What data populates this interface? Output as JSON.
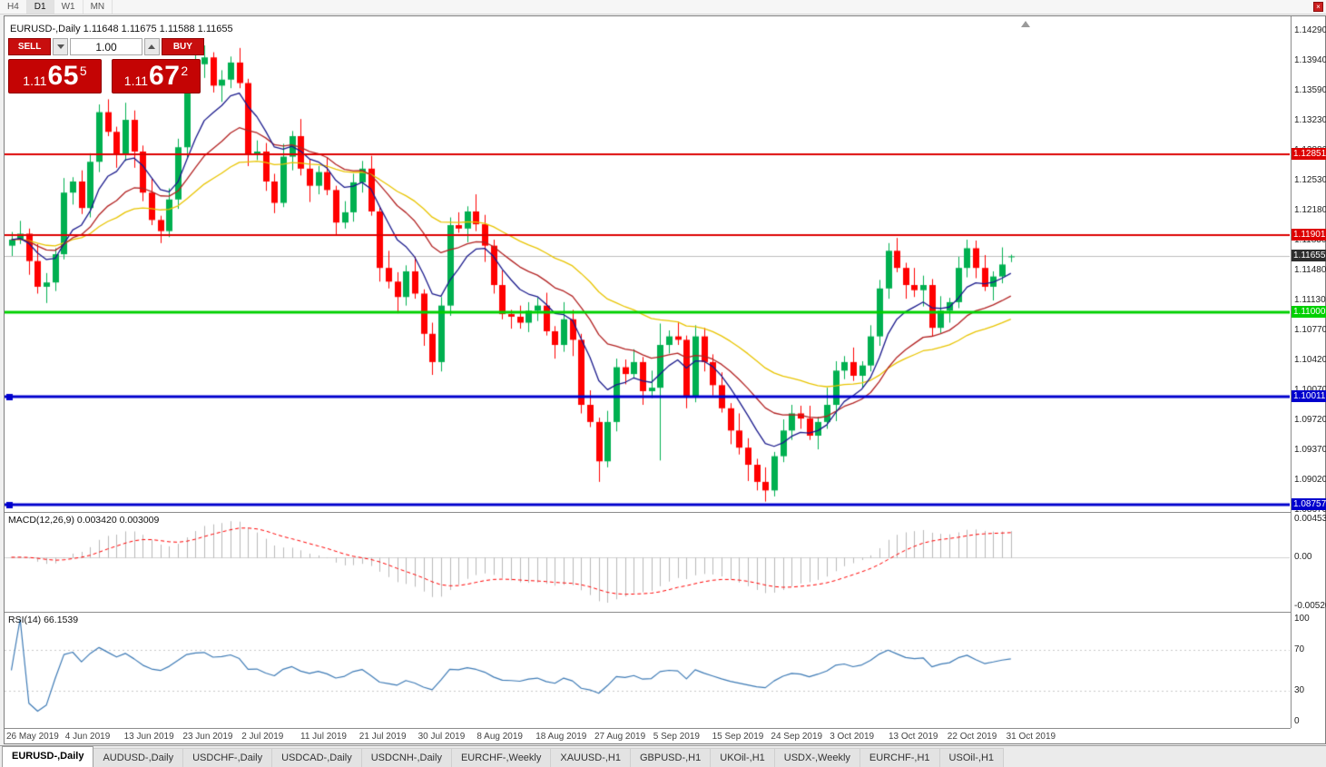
{
  "toolbar": {
    "timeframes": [
      "H4",
      "D1",
      "W1",
      "MN"
    ],
    "active_timeframe": "D1",
    "close_glyph": "×"
  },
  "chart_header": {
    "symbol_ohlc": "EURUSD-,Daily 1.11648 1.11675 1.11588 1.11655"
  },
  "trade_panel": {
    "sell_label": "SELL",
    "buy_label": "BUY",
    "volume": "1.00",
    "sell_price": {
      "prefix": "1.11",
      "main": "65",
      "sup": "5"
    },
    "buy_price": {
      "prefix": "1.11",
      "main": "67",
      "sup": "2"
    }
  },
  "main_chart": {
    "price_axis_labels": [
      "1.14290",
      "1.13940",
      "1.13590",
      "1.13230",
      "1.12880",
      "1.12530",
      "1.12180",
      "1.11830",
      "1.11480",
      "1.11130",
      "1.10770",
      "1.10420",
      "1.10070",
      "1.09720",
      "1.09370",
      "1.09020",
      "1.08670"
    ],
    "levels": [
      {
        "value": 1.12851,
        "label": "1.12851",
        "color": "#dd0000",
        "width": 2,
        "endpoints": false
      },
      {
        "value": 1.11901,
        "label": "1.11901",
        "color": "#dd0000",
        "width": 2,
        "endpoints": false
      },
      {
        "value": 1.11,
        "label": "1.11000",
        "color": "#00d000",
        "width": 3,
        "endpoints": false
      },
      {
        "value": 1.10011,
        "label": "1.10011",
        "color": "#0000cd",
        "width": 3,
        "endpoints": true
      },
      {
        "value": 1.08757,
        "label": "1.08757",
        "color": "#0000cd",
        "width": 3,
        "endpoints": true
      }
    ],
    "current_price": {
      "value": 1.11655,
      "label": "1.11655",
      "box_color": "#2e2e2e"
    }
  },
  "macd": {
    "header": "MACD(12,26,9) 0.003420 0.003009",
    "axis": [
      "0.004536",
      "0.00",
      "-0.005205"
    ]
  },
  "rsi": {
    "header": "RSI(14) 66.1539",
    "axis": [
      "100",
      "70",
      "30",
      "0"
    ],
    "levels": [
      70,
      30
    ]
  },
  "date_axis": [
    "26 May 2019",
    "4 Jun 2019",
    "13 Jun 2019",
    "23 Jun 2019",
    "2 Jul 2019",
    "11 Jul 2019",
    "21 Jul 2019",
    "30 Jul 2019",
    "8 Aug 2019",
    "18 Aug 2019",
    "27 Aug 2019",
    "5 Sep 2019",
    "15 Sep 2019",
    "24 Sep 2019",
    "3 Oct 2019",
    "13 Oct 2019",
    "22 Oct 2019",
    "31 Oct 2019"
  ],
  "tabs": [
    {
      "label": "EURUSD-,Daily",
      "active": true
    },
    {
      "label": "AUDUSD-,Daily",
      "active": false
    },
    {
      "label": "USDCHF-,Daily",
      "active": false
    },
    {
      "label": "USDCAD-,Daily",
      "active": false
    },
    {
      "label": "USDCNH-,Daily",
      "active": false
    },
    {
      "label": "EURCHF-,Weekly",
      "active": false
    },
    {
      "label": "XAUUSD-,H1",
      "active": false
    },
    {
      "label": "GBPUSD-,H1",
      "active": false
    },
    {
      "label": "UKOil-,H1",
      "active": false
    },
    {
      "label": "USDX-,Weekly",
      "active": false
    },
    {
      "label": "EURCHF-,H1",
      "active": false
    },
    {
      "label": "USOil-,H1",
      "active": false
    }
  ],
  "colors": {
    "up": "#00b050",
    "down": "#ff0000",
    "macd_hist": "#b8b8b8",
    "macd_signal": "#ff0000",
    "rsi_line": "#3d7ab5",
    "accent_red": "#c40404"
  },
  "chart_data": {
    "type": "candlestick",
    "title": "EURUSD-,Daily",
    "ohlc_display": {
      "open": "1.11648",
      "high": "1.11675",
      "low": "1.11588",
      "close": "1.11655"
    },
    "indicators": {
      "moving_averages": [
        {
          "period": 8,
          "color": "#1a1a8c"
        },
        {
          "period": 18,
          "color": "#b22222"
        },
        {
          "period": 35,
          "color": "#e8c400"
        }
      ],
      "macd": {
        "fast": 12,
        "slow": 26,
        "signal": 9,
        "value": 0.00342,
        "signal_value": 0.003009
      },
      "rsi": {
        "period": 14,
        "value": 66.1539
      }
    },
    "candles": [
      [
        1.1178,
        1.1194,
        1.1166,
        1.1185
      ],
      [
        1.1185,
        1.1207,
        1.118,
        1.1192
      ],
      [
        1.1192,
        1.1198,
        1.1144,
        1.116
      ],
      [
        1.116,
        1.118,
        1.1122,
        1.113
      ],
      [
        1.113,
        1.1146,
        1.1111,
        1.1135
      ],
      [
        1.1135,
        1.1175,
        1.1125,
        1.1168
      ],
      [
        1.1168,
        1.1257,
        1.1162,
        1.124
      ],
      [
        1.124,
        1.1258,
        1.1226,
        1.1253
      ],
      [
        1.1253,
        1.1266,
        1.1215,
        1.1222
      ],
      [
        1.1222,
        1.1286,
        1.1211,
        1.1276
      ],
      [
        1.1276,
        1.1343,
        1.1264,
        1.1334
      ],
      [
        1.1334,
        1.1349,
        1.1306,
        1.1311
      ],
      [
        1.1311,
        1.1317,
        1.1269,
        1.1285
      ],
      [
        1.1285,
        1.1345,
        1.1277,
        1.1325
      ],
      [
        1.1325,
        1.1336,
        1.1269,
        1.1288
      ],
      [
        1.1288,
        1.1295,
        1.123,
        1.124
      ],
      [
        1.124,
        1.1257,
        1.1202,
        1.1208
      ],
      [
        1.1208,
        1.1213,
        1.1181,
        1.1195
      ],
      [
        1.1195,
        1.1245,
        1.1188,
        1.1232
      ],
      [
        1.1232,
        1.1303,
        1.1221,
        1.1293
      ],
      [
        1.1293,
        1.1377,
        1.1281,
        1.1368
      ],
      [
        1.1368,
        1.1405,
        1.1363,
        1.139
      ],
      [
        1.139,
        1.1412,
        1.1374,
        1.1398
      ],
      [
        1.1398,
        1.1404,
        1.1357,
        1.1365
      ],
      [
        1.1365,
        1.1383,
        1.1346,
        1.1372
      ],
      [
        1.1372,
        1.1399,
        1.1362,
        1.1392
      ],
      [
        1.1392,
        1.1409,
        1.1362,
        1.1368
      ],
      [
        1.1368,
        1.1373,
        1.1271,
        1.1285
      ],
      [
        1.1285,
        1.1301,
        1.1278,
        1.1288
      ],
      [
        1.1288,
        1.1298,
        1.1242,
        1.1253
      ],
      [
        1.1253,
        1.1262,
        1.1216,
        1.1228
      ],
      [
        1.1228,
        1.1297,
        1.1223,
        1.1282
      ],
      [
        1.1282,
        1.1312,
        1.1266,
        1.1306
      ],
      [
        1.1306,
        1.1326,
        1.126,
        1.1268
      ],
      [
        1.1268,
        1.1279,
        1.1229,
        1.1248
      ],
      [
        1.1248,
        1.1271,
        1.1238,
        1.1264
      ],
      [
        1.1264,
        1.1281,
        1.1237,
        1.1243
      ],
      [
        1.1243,
        1.1248,
        1.1191,
        1.1205
      ],
      [
        1.1205,
        1.123,
        1.1198,
        1.1217
      ],
      [
        1.1217,
        1.1262,
        1.1206,
        1.1252
      ],
      [
        1.1252,
        1.1277,
        1.124,
        1.1268
      ],
      [
        1.1268,
        1.1283,
        1.1213,
        1.1218
      ],
      [
        1.1218,
        1.1224,
        1.1136,
        1.1152
      ],
      [
        1.1152,
        1.1172,
        1.1128,
        1.1136
      ],
      [
        1.1136,
        1.1147,
        1.1099,
        1.1118
      ],
      [
        1.1118,
        1.1155,
        1.1108,
        1.1148
      ],
      [
        1.1148,
        1.1165,
        1.1116,
        1.1122
      ],
      [
        1.1122,
        1.1127,
        1.1061,
        1.1075
      ],
      [
        1.1075,
        1.1088,
        1.1027,
        1.1042
      ],
      [
        1.1042,
        1.1118,
        1.1031,
        1.1108
      ],
      [
        1.1108,
        1.1211,
        1.1096,
        1.1202
      ],
      [
        1.1202,
        1.1217,
        1.1193,
        1.1198
      ],
      [
        1.1198,
        1.1224,
        1.1182,
        1.1218
      ],
      [
        1.1218,
        1.1238,
        1.1195,
        1.1203
      ],
      [
        1.1203,
        1.1214,
        1.1159,
        1.1178
      ],
      [
        1.1178,
        1.1185,
        1.1122,
        1.1132
      ],
      [
        1.1132,
        1.1149,
        1.1092,
        1.1098
      ],
      [
        1.1098,
        1.1103,
        1.1081,
        1.1095
      ],
      [
        1.1095,
        1.1108,
        1.1081,
        1.1088
      ],
      [
        1.1088,
        1.1112,
        1.1077,
        1.1102
      ],
      [
        1.1102,
        1.1117,
        1.109,
        1.1108
      ],
      [
        1.1108,
        1.1123,
        1.1073,
        1.1078
      ],
      [
        1.1078,
        1.1084,
        1.1046,
        1.1062
      ],
      [
        1.1062,
        1.1112,
        1.1054,
        1.1092
      ],
      [
        1.1092,
        1.1103,
        1.1049,
        1.1068
      ],
      [
        1.1068,
        1.1075,
        1.0982,
        1.0992
      ],
      [
        1.0992,
        1.1009,
        1.0966,
        1.0972
      ],
      [
        1.0972,
        1.0977,
        1.0902,
        1.0926
      ],
      [
        1.0926,
        1.0985,
        1.0919,
        1.0972
      ],
      [
        1.0972,
        1.1046,
        1.0961,
        1.1036
      ],
      [
        1.1036,
        1.1045,
        1.1016,
        1.1028
      ],
      [
        1.1028,
        1.1057,
        1.1023,
        1.1042
      ],
      [
        1.1042,
        1.1048,
        1.0992,
        1.1008
      ],
      [
        1.1008,
        1.1032,
        1.1,
        1.1012
      ],
      [
        1.1012,
        1.1087,
        1.0927,
        1.1062
      ],
      [
        1.1062,
        1.1079,
        1.1052,
        1.1072
      ],
      [
        1.1072,
        1.1089,
        1.1062,
        1.1068
      ],
      [
        1.1068,
        1.1073,
        1.0988,
        1.1002
      ],
      [
        1.1002,
        1.1085,
        1.0995,
        1.1072
      ],
      [
        1.1072,
        1.1082,
        1.1031,
        1.1042
      ],
      [
        1.1042,
        1.1051,
        1.1003,
        1.1015
      ],
      [
        1.1015,
        1.103,
        1.0983,
        1.0988
      ],
      [
        1.0988,
        1.0994,
        1.0946,
        1.0962
      ],
      [
        1.0962,
        1.0982,
        1.0934,
        1.0942
      ],
      [
        1.0942,
        1.0953,
        1.0903,
        1.0922
      ],
      [
        1.0922,
        1.0929,
        1.0892,
        1.0902
      ],
      [
        1.0902,
        1.0919,
        1.0879,
        1.0892
      ],
      [
        1.0892,
        1.0937,
        1.0885,
        1.0932
      ],
      [
        1.0932,
        1.0975,
        1.0925,
        1.0962
      ],
      [
        1.0962,
        1.0992,
        1.0951,
        1.0982
      ],
      [
        1.0982,
        1.0991,
        1.0964,
        1.0976
      ],
      [
        1.0976,
        1.0991,
        1.0951,
        1.0956
      ],
      [
        1.0956,
        1.0978,
        1.094,
        1.0972
      ],
      [
        1.0972,
        1.1012,
        1.0964,
        1.0992
      ],
      [
        1.0992,
        1.1043,
        1.0973,
        1.1032
      ],
      [
        1.1032,
        1.1049,
        1.1022,
        1.1042
      ],
      [
        1.1042,
        1.1059,
        1.102,
        1.1026
      ],
      [
        1.1026,
        1.1043,
        1.1012,
        1.1038
      ],
      [
        1.1038,
        1.1085,
        1.1031,
        1.1072
      ],
      [
        1.1072,
        1.1138,
        1.1061,
        1.1128
      ],
      [
        1.1128,
        1.1181,
        1.1116,
        1.1172
      ],
      [
        1.1172,
        1.1187,
        1.1147,
        1.1152
      ],
      [
        1.1152,
        1.1158,
        1.1116,
        1.1132
      ],
      [
        1.1132,
        1.1152,
        1.1118,
        1.1126
      ],
      [
        1.1126,
        1.1143,
        1.1107,
        1.1132
      ],
      [
        1.1132,
        1.1139,
        1.1072,
        1.1082
      ],
      [
        1.1082,
        1.1119,
        1.1076,
        1.1102
      ],
      [
        1.1102,
        1.1117,
        1.1088,
        1.1112
      ],
      [
        1.1112,
        1.1165,
        1.1105,
        1.1152
      ],
      [
        1.1152,
        1.1185,
        1.1141,
        1.1175
      ],
      [
        1.1175,
        1.1184,
        1.114,
        1.1152
      ],
      [
        1.1152,
        1.1167,
        1.1125,
        1.113
      ],
      [
        1.113,
        1.1148,
        1.1114,
        1.1142
      ],
      [
        1.1142,
        1.1176,
        1.1134,
        1.1156
      ],
      [
        1.11648,
        1.11675,
        1.11588,
        1.11655
      ]
    ]
  }
}
